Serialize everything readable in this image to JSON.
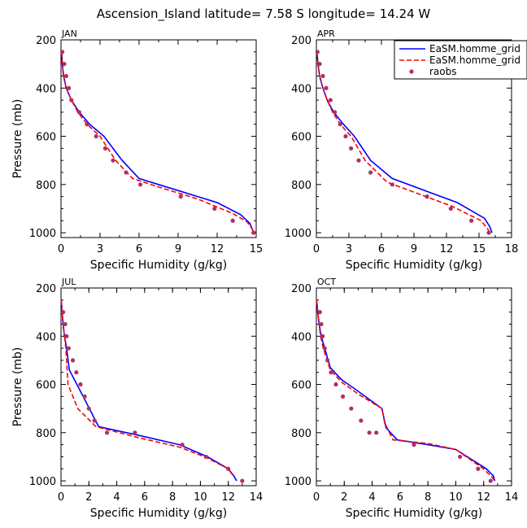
{
  "title": "Ascension_Island   latitude= 7.58 S longitude= 14.24 W",
  "legend": {
    "entries": [
      {
        "label": "EaSM.homme_grid",
        "color": "#0000ff",
        "style": "solid"
      },
      {
        "label": "EaSM.homme_grid",
        "color": "#ff0000",
        "style": "dashed"
      },
      {
        "label": "raobs",
        "color": "#b03060",
        "style": "dot"
      }
    ]
  },
  "chart_data": [
    {
      "type": "line",
      "panel": "JAN",
      "xlabel": "Specific Humidity (g/kg)",
      "ylabel": "Pressure (mb)",
      "xlim": [
        0,
        15
      ],
      "ylim": [
        200,
        1020
      ],
      "y_inverted": true,
      "xticks": [
        0,
        3,
        6,
        9,
        12,
        15
      ],
      "yticks": [
        200,
        400,
        600,
        800,
        1000
      ],
      "series": [
        {
          "name": "EaSM.homme_grid",
          "color": "#0000ff",
          "style": "solid",
          "x": [
            0.05,
            0.1,
            0.2,
            0.4,
            0.8,
            1.4,
            2.2,
            3.3,
            4.7,
            6.0,
            9.0,
            12.0,
            13.8,
            14.5,
            14.7,
            14.8
          ],
          "y": [
            250,
            300,
            350,
            400,
            450,
            500,
            550,
            600,
            700,
            775,
            825,
            875,
            925,
            960,
            985,
            1000
          ]
        },
        {
          "name": "EaSM.homme_grid",
          "color": "#ff0000",
          "style": "dashed",
          "x": [
            0.05,
            0.1,
            0.2,
            0.4,
            0.8,
            1.3,
            2.0,
            3.0,
            4.2,
            5.5,
            7.5,
            10.5,
            13.2,
            14.3,
            14.7,
            14.8
          ],
          "y": [
            250,
            300,
            350,
            400,
            450,
            500,
            550,
            600,
            700,
            775,
            810,
            860,
            920,
            955,
            985,
            1000
          ]
        },
        {
          "name": "raobs",
          "color": "#b03060",
          "style": "dot",
          "x": [
            0.1,
            0.25,
            0.4,
            0.6,
            0.8,
            1.4,
            2.0,
            2.7,
            3.4,
            4.0,
            5.0,
            6.1,
            9.2,
            11.8,
            13.2,
            14.8
          ],
          "y": [
            250,
            300,
            350,
            400,
            450,
            500,
            550,
            600,
            650,
            700,
            750,
            800,
            850,
            900,
            950,
            1000
          ]
        }
      ]
    },
    {
      "type": "line",
      "panel": "APR",
      "xlabel": "Specific Humidity (g/kg)",
      "ylabel": "",
      "xlim": [
        0,
        18
      ],
      "ylim": [
        200,
        1020
      ],
      "y_inverted": true,
      "xticks": [
        0,
        3,
        6,
        9,
        12,
        15,
        18
      ],
      "yticks": [
        200,
        400,
        600,
        800,
        1000
      ],
      "series": [
        {
          "name": "EaSM.homme_grid",
          "color": "#0000ff",
          "style": "solid",
          "x": [
            0.05,
            0.15,
            0.3,
            0.6,
            1.0,
            1.6,
            2.5,
            3.5,
            5.0,
            7.0,
            10.0,
            13.0,
            15.5,
            16.0,
            16.2
          ],
          "y": [
            250,
            300,
            350,
            400,
            450,
            500,
            550,
            600,
            700,
            775,
            825,
            875,
            940,
            975,
            1000
          ]
        },
        {
          "name": "EaSM.homme_grid",
          "color": "#ff0000",
          "style": "dashed",
          "x": [
            0.05,
            0.15,
            0.3,
            0.6,
            1.0,
            1.5,
            2.2,
            3.2,
            4.5,
            6.5,
            9.5,
            12.5,
            15.2,
            15.8,
            16.0
          ],
          "y": [
            250,
            300,
            350,
            400,
            450,
            500,
            550,
            600,
            700,
            790,
            840,
            890,
            950,
            985,
            1000
          ]
        },
        {
          "name": "raobs",
          "color": "#b03060",
          "style": "dot",
          "x": [
            0.1,
            0.3,
            0.6,
            0.9,
            1.3,
            1.7,
            2.2,
            2.7,
            3.2,
            3.9,
            5.0,
            7.0,
            10.2,
            12.4,
            14.3,
            15.9
          ],
          "y": [
            250,
            300,
            350,
            400,
            450,
            500,
            550,
            600,
            650,
            700,
            750,
            800,
            850,
            900,
            950,
            1000
          ]
        }
      ]
    },
    {
      "type": "line",
      "panel": "JUL",
      "xlabel": "Specific Humidity (g/kg)",
      "ylabel": "Pressure (mb)",
      "xlim": [
        0,
        14
      ],
      "ylim": [
        200,
        1020
      ],
      "y_inverted": true,
      "xticks": [
        0,
        2,
        4,
        6,
        8,
        10,
        12,
        14
      ],
      "yticks": [
        200,
        400,
        600,
        800,
        1000
      ],
      "series": [
        {
          "name": "EaSM.homme_grid",
          "color": "#0000ff",
          "style": "solid",
          "x": [
            0.02,
            0.08,
            0.15,
            0.25,
            0.4,
            0.6,
            1.5,
            2.7,
            5.5,
            8.5,
            10.5,
            12.0,
            12.4,
            12.6
          ],
          "y": [
            250,
            300,
            350,
            400,
            450,
            540,
            640,
            775,
            810,
            850,
            900,
            950,
            980,
            1000
          ]
        },
        {
          "name": "EaSM.homme_grid",
          "color": "#ff0000",
          "style": "dashed",
          "x": [
            0.02,
            0.08,
            0.15,
            0.25,
            0.35,
            0.5,
            1.2,
            2.5,
            5.5,
            8.5,
            10.5,
            12.0,
            12.3
          ],
          "y": [
            250,
            300,
            350,
            400,
            450,
            600,
            700,
            775,
            820,
            860,
            905,
            950,
            975
          ]
        },
        {
          "name": "raobs",
          "color": "#b03060",
          "style": "dot",
          "x": [
            0.15,
            0.3,
            0.4,
            0.55,
            0.85,
            1.1,
            1.4,
            1.7,
            2.0,
            2.4,
            3.3,
            5.3,
            8.7,
            10.4,
            12.0,
            13.0
          ],
          "y": [
            300,
            350,
            400,
            450,
            500,
            550,
            600,
            650,
            700,
            750,
            800,
            800,
            850,
            900,
            950,
            1000
          ]
        }
      ]
    },
    {
      "type": "line",
      "panel": "OCT",
      "xlabel": "Specific Humidity (g/kg)",
      "ylabel": "",
      "xlim": [
        0,
        14
      ],
      "ylim": [
        200,
        1020
      ],
      "y_inverted": true,
      "xticks": [
        0,
        2,
        4,
        6,
        8,
        10,
        12,
        14
      ],
      "yticks": [
        200,
        400,
        600,
        800,
        1000
      ],
      "series": [
        {
          "name": "EaSM.homme_grid",
          "color": "#0000ff",
          "style": "solid",
          "x": [
            0.02,
            0.1,
            0.2,
            0.35,
            0.6,
            1.0,
            1.8,
            2.8,
            4.7,
            5.0,
            5.8,
            8.0,
            10.0,
            12.2,
            12.7,
            12.8
          ],
          "y": [
            250,
            300,
            350,
            400,
            450,
            530,
            580,
            620,
            700,
            780,
            830,
            850,
            870,
            950,
            980,
            1000
          ]
        },
        {
          "name": "EaSM.homme_grid",
          "color": "#ff0000",
          "style": "dashed",
          "x": [
            0.02,
            0.1,
            0.2,
            0.3,
            0.5,
            1.0,
            1.8,
            3.0,
            4.7,
            4.9,
            5.5,
            8.0,
            10.0,
            12.0,
            12.6,
            12.8
          ],
          "y": [
            250,
            300,
            350,
            400,
            450,
            540,
            590,
            640,
            700,
            760,
            830,
            845,
            870,
            950,
            985,
            1000
          ]
        },
        {
          "name": "raobs",
          "color": "#b03060",
          "style": "dot",
          "x": [
            0.25,
            0.35,
            0.45,
            0.6,
            0.8,
            1.05,
            1.4,
            1.9,
            2.5,
            3.2,
            3.8,
            4.3,
            7.0,
            10.3,
            11.6,
            12.5
          ],
          "y": [
            300,
            350,
            400,
            450,
            500,
            550,
            600,
            650,
            700,
            750,
            800,
            800,
            850,
            900,
            950,
            1000
          ]
        }
      ]
    }
  ]
}
